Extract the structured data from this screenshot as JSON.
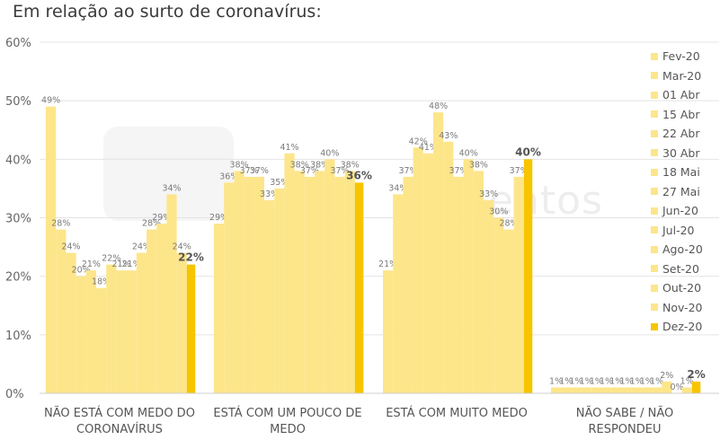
{
  "title": "Em relação ao surto de coronavírus:",
  "watermark": "sentos",
  "colors": {
    "light": "#fde58a",
    "highlight": "#f7c500",
    "grid": "#e4e4e4",
    "label": "#666666"
  },
  "chart_data": {
    "type": "bar",
    "ylim": [
      0,
      60
    ],
    "yticks": [
      "0%",
      "10%",
      "20%",
      "30%",
      "40%",
      "50%",
      "60%"
    ],
    "grid": true,
    "legend_position": "right",
    "series_names": [
      "Fev-20",
      "Mar-20",
      "01 Abr",
      "15 Abr",
      "22 Abr",
      "30 Abr",
      "18 Mai",
      "27 Mai",
      "Jun-20",
      "Jul-20",
      "Ago-20",
      "Set-20",
      "Out-20",
      "Nov-20",
      "Dez-20"
    ],
    "groups": [
      {
        "label": [
          "NÃO ESTÁ COM MEDO DO",
          "CORONAVÍRUS"
        ],
        "values": [
          49,
          28,
          24,
          20,
          21,
          18,
          22,
          21,
          21,
          24,
          28,
          29,
          34,
          24,
          22
        ]
      },
      {
        "label": [
          "ESTÁ COM UM POUCO DE",
          "MEDO"
        ],
        "values": [
          29,
          36,
          38,
          37,
          37,
          33,
          35,
          41,
          38,
          37,
          38,
          40,
          37,
          38,
          36
        ]
      },
      {
        "label": [
          "ESTÁ COM MUITO MEDO"
        ],
        "values": [
          21,
          34,
          37,
          42,
          41,
          48,
          43,
          37,
          40,
          38,
          33,
          30,
          28,
          37,
          40
        ]
      },
      {
        "label": [
          "NÃO SABE / NÃO",
          "RESPONDEU"
        ],
        "values": [
          1,
          1,
          1,
          1,
          1,
          1,
          1,
          1,
          1,
          1,
          1,
          2,
          0,
          1,
          2
        ]
      }
    ]
  }
}
